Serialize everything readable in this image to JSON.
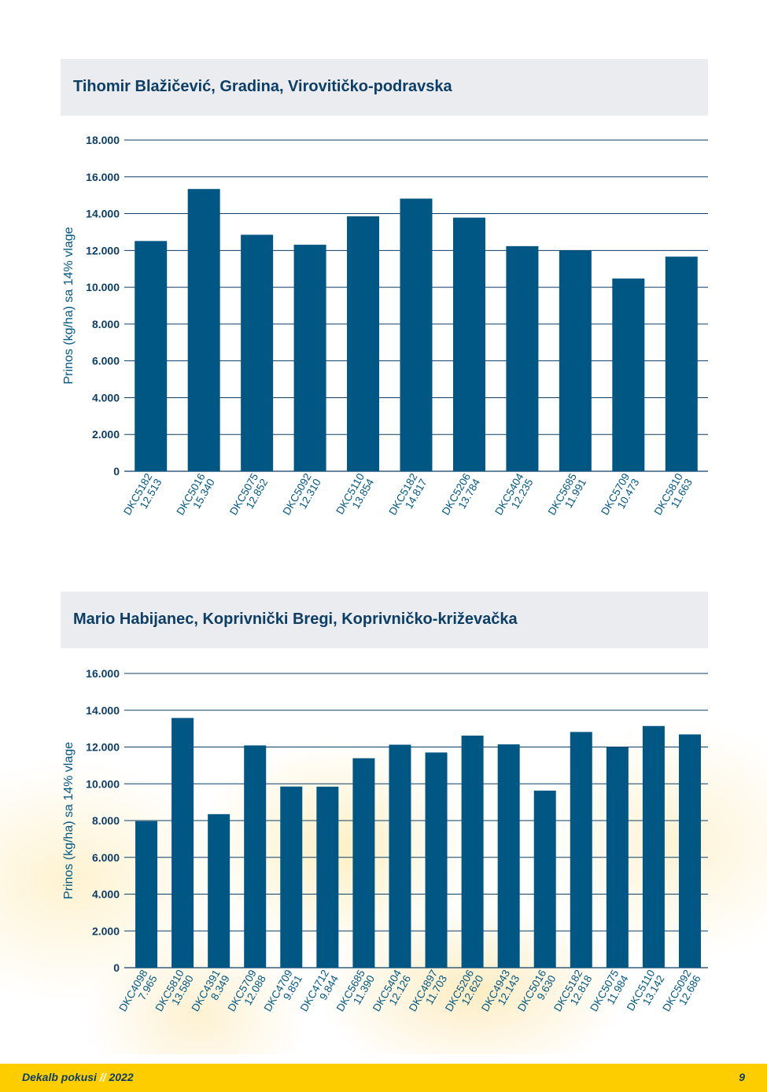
{
  "chart_data": [
    {
      "type": "bar",
      "title": "Tihomir Blažičević, Gradina, Virovitičko-podravska",
      "ylabel": "Prinos (kg/ha) sa 14% vlage",
      "ylim": [
        0,
        18000
      ],
      "yticks": [
        "0",
        "2.000",
        "4.000",
        "6.000",
        "8.000",
        "10.000",
        "12.000",
        "14.000",
        "16.000",
        "18.000"
      ],
      "categories": [
        "DKC5182",
        "DKC5016",
        "DKC5075",
        "DKC5092",
        "DKC5110",
        "DKC5182",
        "DKC5206",
        "DKC5404",
        "DKC5685",
        "DKC5709",
        "DKC5810"
      ],
      "value_labels": [
        "12.513",
        "15.340",
        "12.852",
        "12.310",
        "13.854",
        "14.817",
        "13.784",
        "12.235",
        "11.991",
        "10.473",
        "11.663"
      ],
      "values": [
        12513,
        15340,
        12852,
        12310,
        13854,
        14817,
        13784,
        12235,
        11991,
        10473,
        11663
      ],
      "grid": true,
      "bar_color": "#005783"
    },
    {
      "type": "bar",
      "title": "Mario Habijanec, Koprivnički Bregi, Koprivničko-križevačka",
      "ylabel": "Prinos (kg/ha) sa 14% vlage",
      "ylim": [
        0,
        16000
      ],
      "yticks": [
        "0",
        "2.000",
        "4.000",
        "6.000",
        "8.000",
        "10.000",
        "12.000",
        "14.000",
        "16.000"
      ],
      "categories": [
        "DKC4098",
        "DKC5810",
        "DKC4391",
        "DKC5709",
        "DKC4709",
        "DKC4712",
        "DKC5685",
        "DKC5404",
        "DKC4897",
        "DKC5206",
        "DKC4943",
        "DKC5016",
        "DKC5182",
        "DKC5075",
        "DKC5110",
        "DKC5092"
      ],
      "value_labels": [
        "7.965",
        "13.580",
        "8.349",
        "12.088",
        "9.851",
        "9.844",
        "11.390",
        "12.126",
        "11.703",
        "12.620",
        "12.143",
        "9.630",
        "12.818",
        "11.984",
        "13.142",
        "12.686"
      ],
      "values": [
        7965,
        13580,
        8349,
        12088,
        9851,
        9844,
        11390,
        12126,
        11703,
        12620,
        12143,
        9630,
        12818,
        11984,
        13142,
        12686
      ],
      "grid": true,
      "bar_color": "#005783"
    }
  ],
  "footer": {
    "brand": "Dekalb pokusi",
    "separator": "//",
    "year": "2022",
    "page_number": "9"
  }
}
